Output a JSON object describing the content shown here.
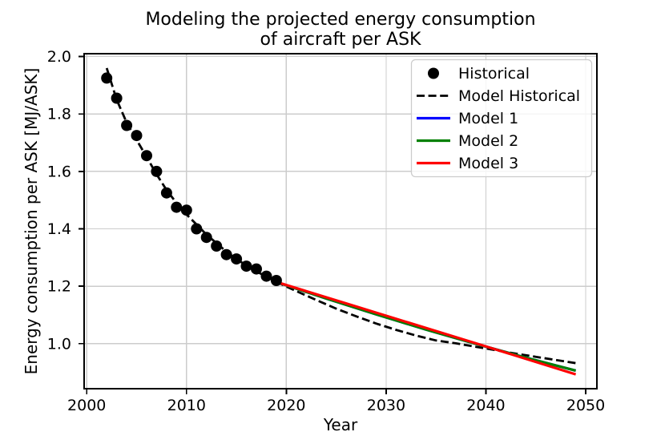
{
  "figure": {
    "title_line1": "Modeling the projected energy consumption",
    "title_line2": "of aircraft per ASK",
    "xlabel": "Year",
    "ylabel": "Energy consumption per ASK [MJ/ASK]"
  },
  "colors": {
    "historical": "#000000",
    "model_historical": "#000000",
    "model1": "#0000ff",
    "model2": "#008000",
    "model3": "#ff0000",
    "grid": "#cccccc",
    "spine": "#000000",
    "legend_border": "#cccccc",
    "background": "#ffffff"
  },
  "chart_data": {
    "type": "line",
    "title": "Modeling the projected energy consumption\nof aircraft per ASK",
    "xlabel": "Year",
    "ylabel": "Energy consumption per ASK [MJ/ASK]",
    "xlim": [
      1999.74,
      2051.12
    ],
    "ylim": [
      0.843,
      2.01
    ],
    "xticks": [
      2000,
      2010,
      2020,
      2030,
      2040,
      2050
    ],
    "yticks": [
      1.0,
      1.2,
      1.4,
      1.6,
      1.8,
      2.0
    ],
    "grid": true,
    "legend_position": "upper right",
    "series": [
      {
        "name": "Historical",
        "type": "scatter",
        "style": "solid",
        "color": "#000000",
        "marker": "circle",
        "x": [
          2002,
          2003,
          2004,
          2005,
          2006,
          2007,
          2008,
          2009,
          2010,
          2011,
          2012,
          2013,
          2014,
          2015,
          2016,
          2017,
          2018,
          2019
        ],
        "y": [
          1.925,
          1.855,
          1.76,
          1.725,
          1.655,
          1.6,
          1.525,
          1.475,
          1.465,
          1.4,
          1.37,
          1.34,
          1.31,
          1.295,
          1.27,
          1.26,
          1.235,
          1.22
        ]
      },
      {
        "name": "Model Historical",
        "type": "line",
        "style": "dashed",
        "color": "#000000",
        "x": [
          2002,
          2003,
          2004,
          2005,
          2006,
          2007,
          2008,
          2009,
          2010,
          2011,
          2012,
          2013,
          2014,
          2015,
          2016,
          2017,
          2018,
          2019,
          2021,
          2023,
          2025,
          2027,
          2029,
          2031,
          2033,
          2035,
          2037,
          2039,
          2041,
          2043,
          2045,
          2047,
          2049
        ],
        "y": [
          1.96,
          1.85,
          1.77,
          1.71,
          1.65,
          1.59,
          1.535,
          1.49,
          1.45,
          1.415,
          1.38,
          1.35,
          1.32,
          1.295,
          1.272,
          1.252,
          1.233,
          1.215,
          1.183,
          1.152,
          1.122,
          1.095,
          1.07,
          1.048,
          1.028,
          1.011,
          1.001,
          0.989,
          0.977,
          0.965,
          0.954,
          0.943,
          0.932
        ]
      },
      {
        "name": "Model 1",
        "type": "line",
        "style": "solid",
        "color": "#0000ff",
        "x": [
          2019,
          2024,
          2029,
          2034,
          2039,
          2044,
          2049
        ],
        "y": [
          1.215,
          1.157,
          1.102,
          1.049,
          0.999,
          0.951,
          0.906
        ]
      },
      {
        "name": "Model 2",
        "type": "line",
        "style": "solid",
        "color": "#008000",
        "x": [
          2019,
          2024,
          2029,
          2034,
          2039,
          2044,
          2049
        ],
        "y": [
          1.215,
          1.157,
          1.102,
          1.049,
          0.999,
          0.951,
          0.906
        ]
      },
      {
        "name": "Model 3",
        "type": "line",
        "style": "solid",
        "color": "#ff0000",
        "x": [
          2019,
          2029,
          2039,
          2049
        ],
        "y": [
          1.215,
          1.108,
          1.001,
          0.893
        ]
      }
    ]
  }
}
